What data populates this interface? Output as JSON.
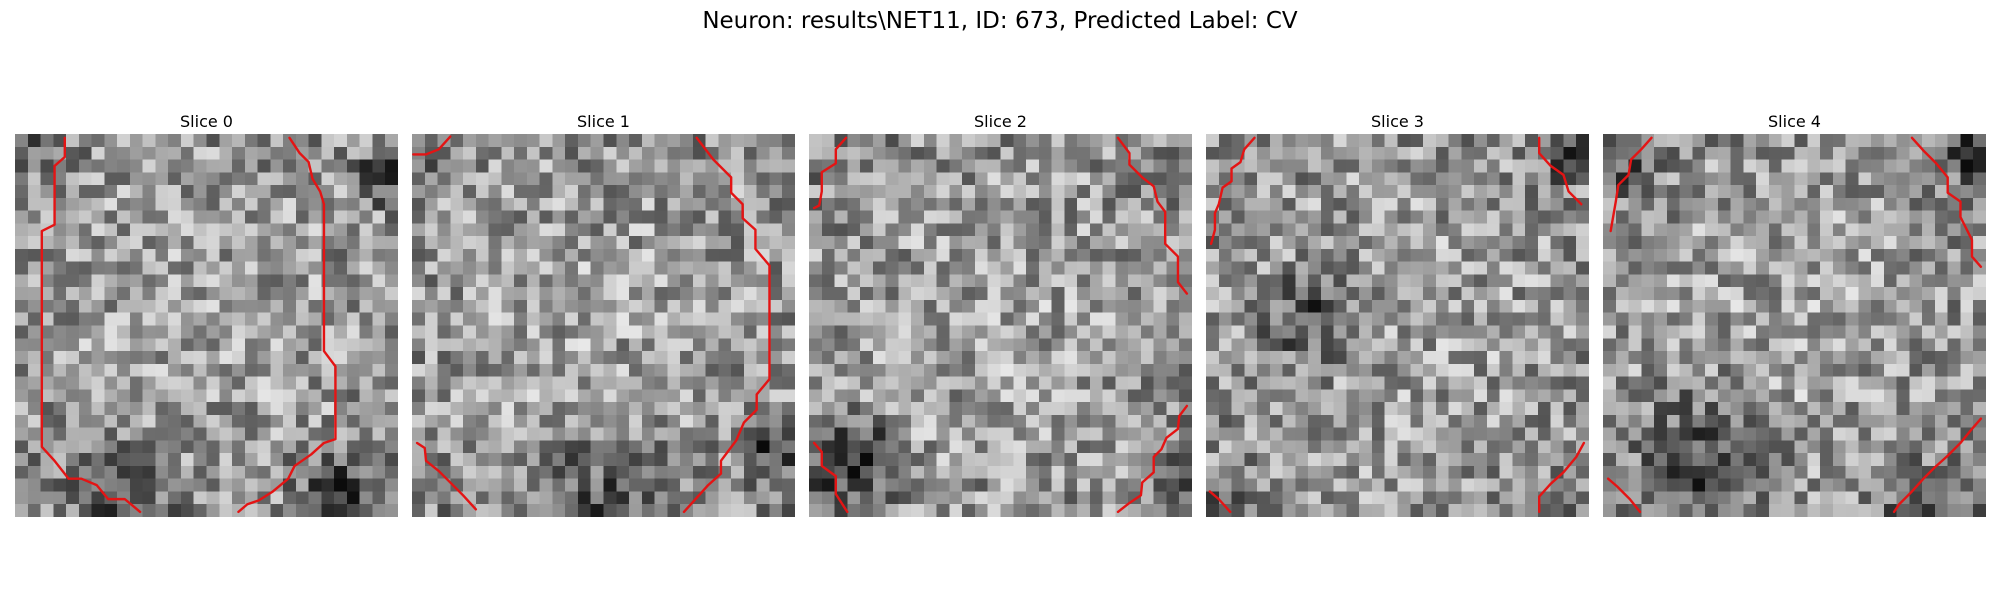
{
  "figure": {
    "title": "Neuron: results\\NET11, ID: 673, Predicted Label: CV",
    "contour_color": "#e41414",
    "colormap": "gray",
    "grid_size": 30
  },
  "slices": [
    {
      "label": "Slice 0"
    },
    {
      "label": "Slice 1"
    },
    {
      "label": "Slice 2"
    },
    {
      "label": "Slice 3"
    },
    {
      "label": "Slice 4"
    }
  ]
}
